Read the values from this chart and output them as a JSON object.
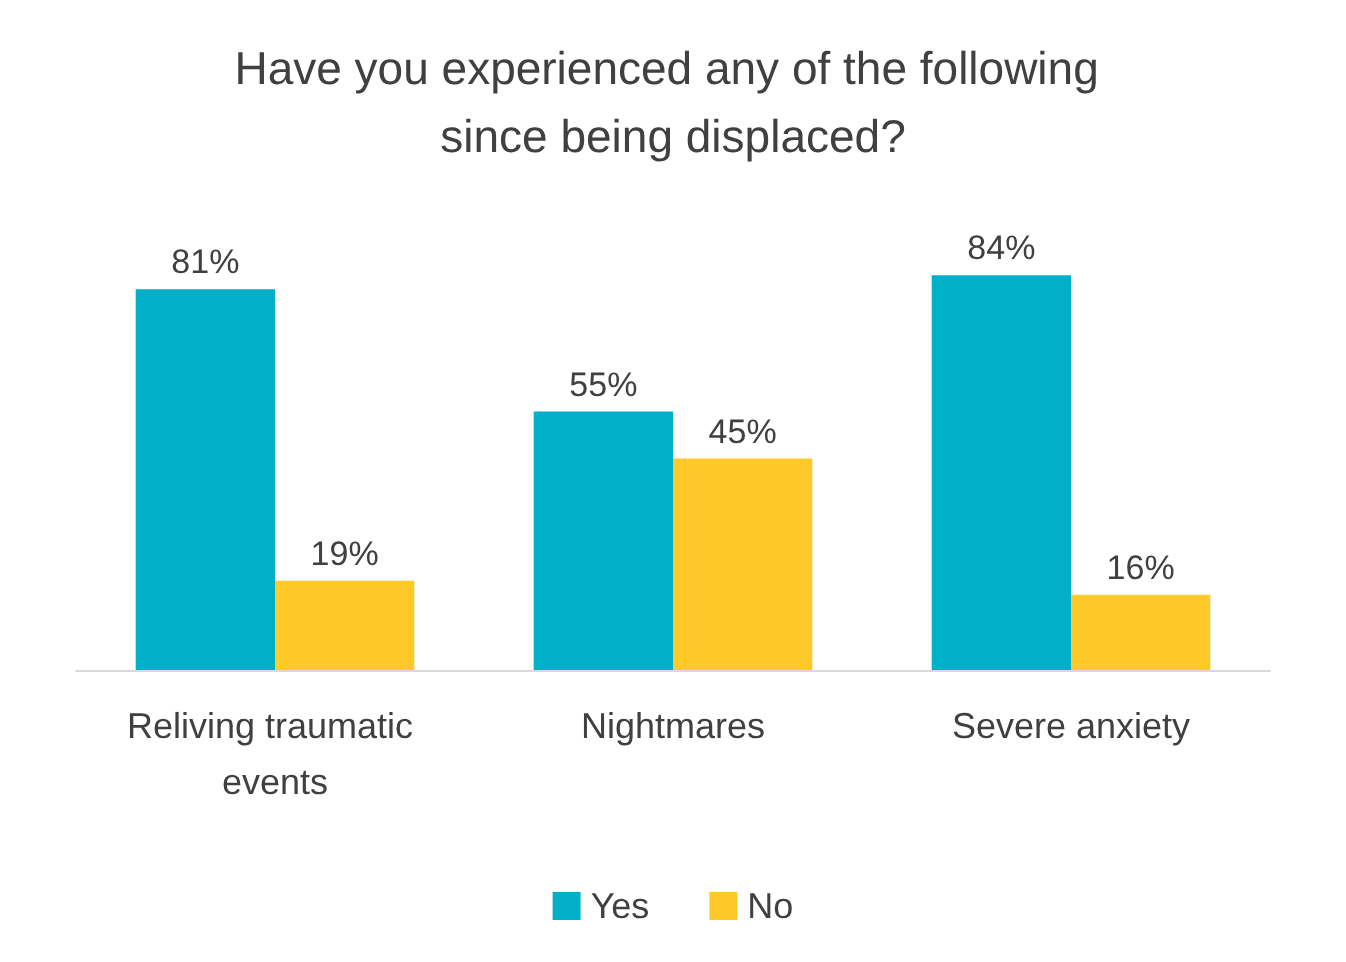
{
  "chart_data": {
    "type": "bar",
    "title": "Have you experienced any of the following since being displaced?",
    "categories": [
      "Reliving traumatic events",
      "Nightmares",
      "Severe anxiety"
    ],
    "series": [
      {
        "name": "Yes",
        "color": "#00b0c8",
        "values": [
          81,
          55,
          84
        ],
        "value_labels": [
          "81%",
          "55%",
          "84%"
        ]
      },
      {
        "name": "No",
        "color": "#ffc929",
        "values": [
          19,
          45,
          16
        ],
        "value_labels": [
          "19%",
          "45%",
          "16%"
        ]
      }
    ],
    "legend": "bottom"
  }
}
